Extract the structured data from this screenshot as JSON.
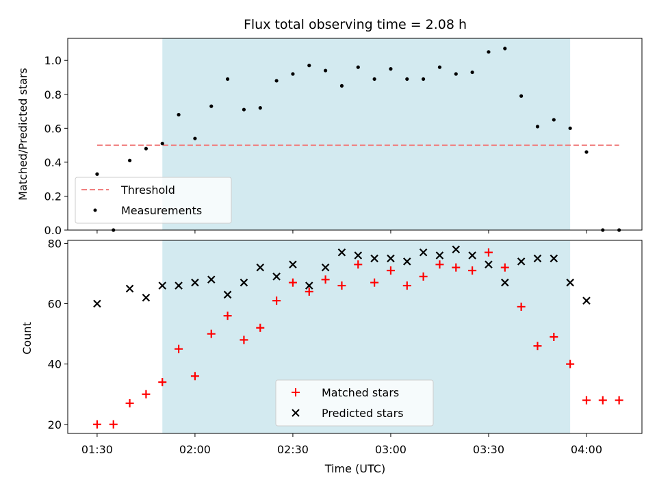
{
  "chart_data": [
    {
      "type": "scatter",
      "title": "Flux total observing time = 2.08 h",
      "xlabel": "",
      "ylabel": "Matched/Predicted stars",
      "ylim": [
        0,
        1.13
      ],
      "yticks": [
        0.0,
        0.2,
        0.4,
        0.6,
        0.8,
        1.0
      ],
      "ytick_labels": [
        "0.0",
        "0.2",
        "0.4",
        "0.6",
        "0.8",
        "1.0"
      ],
      "observing_window": [
        "01:50",
        "03:55"
      ],
      "observing_window_color": "#d3eaf0",
      "threshold": {
        "name": "Threshold",
        "value": 0.5,
        "x_range": [
          "01:30",
          "04:10"
        ],
        "color": "#f07f7f"
      },
      "series": [
        {
          "name": "Measurements",
          "marker": "dot",
          "color": "#000000",
          "x": [
            "01:30",
            "01:35",
            "01:40",
            "01:45",
            "01:50",
            "01:55",
            "02:00",
            "02:05",
            "02:10",
            "02:15",
            "02:20",
            "02:25",
            "02:30",
            "02:35",
            "02:40",
            "02:45",
            "02:50",
            "02:55",
            "03:00",
            "03:05",
            "03:10",
            "03:15",
            "03:20",
            "03:25",
            "03:30",
            "03:35",
            "03:40",
            "03:45",
            "03:50",
            "03:55",
            "04:00",
            "04:05",
            "04:10"
          ],
          "y": [
            0.33,
            0.0,
            0.41,
            0.48,
            0.51,
            0.68,
            0.54,
            0.73,
            0.89,
            0.71,
            0.72,
            0.88,
            0.92,
            0.97,
            0.94,
            0.85,
            0.96,
            0.89,
            0.95,
            0.89,
            0.89,
            0.96,
            0.92,
            0.93,
            1.05,
            1.07,
            0.79,
            0.61,
            0.65,
            0.6,
            0.46,
            0.0,
            0.0
          ]
        }
      ],
      "legend": "lower-left"
    },
    {
      "type": "scatter",
      "xlabel": "Time (UTC)",
      "ylabel": "Count",
      "ylim": [
        17,
        81
      ],
      "yticks": [
        20,
        40,
        60,
        80
      ],
      "ytick_labels": [
        "20",
        "40",
        "60",
        "80"
      ],
      "xticks": [
        "01:30",
        "02:00",
        "02:30",
        "03:00",
        "03:30",
        "04:00"
      ],
      "xlim": [
        "01:21",
        "04:17"
      ],
      "observing_window": [
        "01:50",
        "03:55"
      ],
      "observing_window_color": "#d3eaf0",
      "series": [
        {
          "name": "Matched stars",
          "marker": "plus",
          "color": "#ff0000",
          "x": [
            "01:30",
            "01:35",
            "01:40",
            "01:45",
            "01:50",
            "01:55",
            "02:00",
            "02:05",
            "02:10",
            "02:15",
            "02:20",
            "02:25",
            "02:30",
            "02:35",
            "02:40",
            "02:45",
            "02:50",
            "02:55",
            "03:00",
            "03:05",
            "03:10",
            "03:15",
            "03:20",
            "03:25",
            "03:30",
            "03:35",
            "03:40",
            "03:45",
            "03:50",
            "03:55",
            "04:00",
            "04:05",
            "04:10"
          ],
          "y": [
            20,
            20,
            27,
            30,
            34,
            45,
            36,
            50,
            56,
            48,
            52,
            61,
            67,
            64,
            68,
            66,
            73,
            67,
            71,
            66,
            69,
            73,
            72,
            71,
            77,
            72,
            59,
            46,
            49,
            40,
            28,
            28,
            28
          ]
        },
        {
          "name": "Predicted stars",
          "marker": "x",
          "color": "#000000",
          "x": [
            "01:30",
            "01:40",
            "01:45",
            "01:50",
            "01:55",
            "02:00",
            "02:05",
            "02:10",
            "02:15",
            "02:20",
            "02:25",
            "02:30",
            "02:35",
            "02:40",
            "02:45",
            "02:50",
            "02:55",
            "03:00",
            "03:05",
            "03:10",
            "03:15",
            "03:20",
            "03:25",
            "03:30",
            "03:35",
            "03:40",
            "03:45",
            "03:50",
            "03:55",
            "04:00"
          ],
          "y": [
            60,
            65,
            62,
            66,
            66,
            67,
            68,
            63,
            67,
            72,
            69,
            73,
            66,
            72,
            77,
            76,
            75,
            75,
            74,
            77,
            76,
            78,
            76,
            73,
            67,
            74,
            75,
            75,
            67,
            61
          ]
        }
      ],
      "legend": "lower-center"
    }
  ]
}
